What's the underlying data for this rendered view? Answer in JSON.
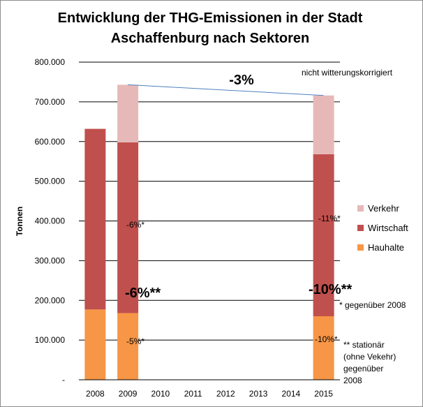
{
  "chart_data": {
    "type": "bar",
    "stacked": true,
    "title_lines": [
      "Entwicklung der THG-Emissionen in der Stadt",
      "Aschaffenburg nach Sektoren"
    ],
    "ylabel": "Tonnen",
    "xlabel": "",
    "ylim": [
      0,
      800000
    ],
    "y_ticks": [
      0,
      100000,
      200000,
      300000,
      400000,
      500000,
      600000,
      700000,
      800000
    ],
    "y_tick_labels": [
      "-",
      "100.000",
      "200.000",
      "300.000",
      "400.000",
      "500.000",
      "600.000",
      "700.000",
      "800.000"
    ],
    "categories": [
      "2008",
      "2009",
      "2010",
      "2011",
      "2012",
      "2013",
      "2014",
      "2015"
    ],
    "grid": true,
    "legend_position": "right",
    "series": [
      {
        "name": "Hauhalte",
        "color": "#f79646",
        "values": [
          177000,
          168000,
          null,
          null,
          null,
          null,
          null,
          160000
        ]
      },
      {
        "name": "Wirtschaft",
        "color": "#c0504d",
        "values": [
          455000,
          430000,
          null,
          null,
          null,
          null,
          null,
          408000
        ]
      },
      {
        "name": "Verkehr",
        "color": "#e6b9b8",
        "values": [
          0,
          145000,
          null,
          null,
          null,
          null,
          null,
          148000
        ]
      }
    ],
    "legend_order": [
      "Verkehr",
      "Wirtschaft",
      "Hauhalte"
    ],
    "trend_line": {
      "from_category": "2009",
      "to_category": "2015",
      "color": "#4f81bd"
    },
    "annotations": {
      "trend_label": "-3%",
      "note_top": "nicht witterungskorrigiert",
      "wirtschaft_2009": "-6%*",
      "wirtschaft_2015": "-11%*",
      "stationaer_2009": "-6%**",
      "stationaer_2015": "-10%**",
      "haushalte_2009": "-5%*",
      "haushalte_2015": "-10%*",
      "footnote_1": "* gegenüber 2008",
      "footnote_2_lines": [
        "** stationär",
        "(ohne Vekehr)",
        "gegenüber",
        "2008"
      ]
    }
  }
}
